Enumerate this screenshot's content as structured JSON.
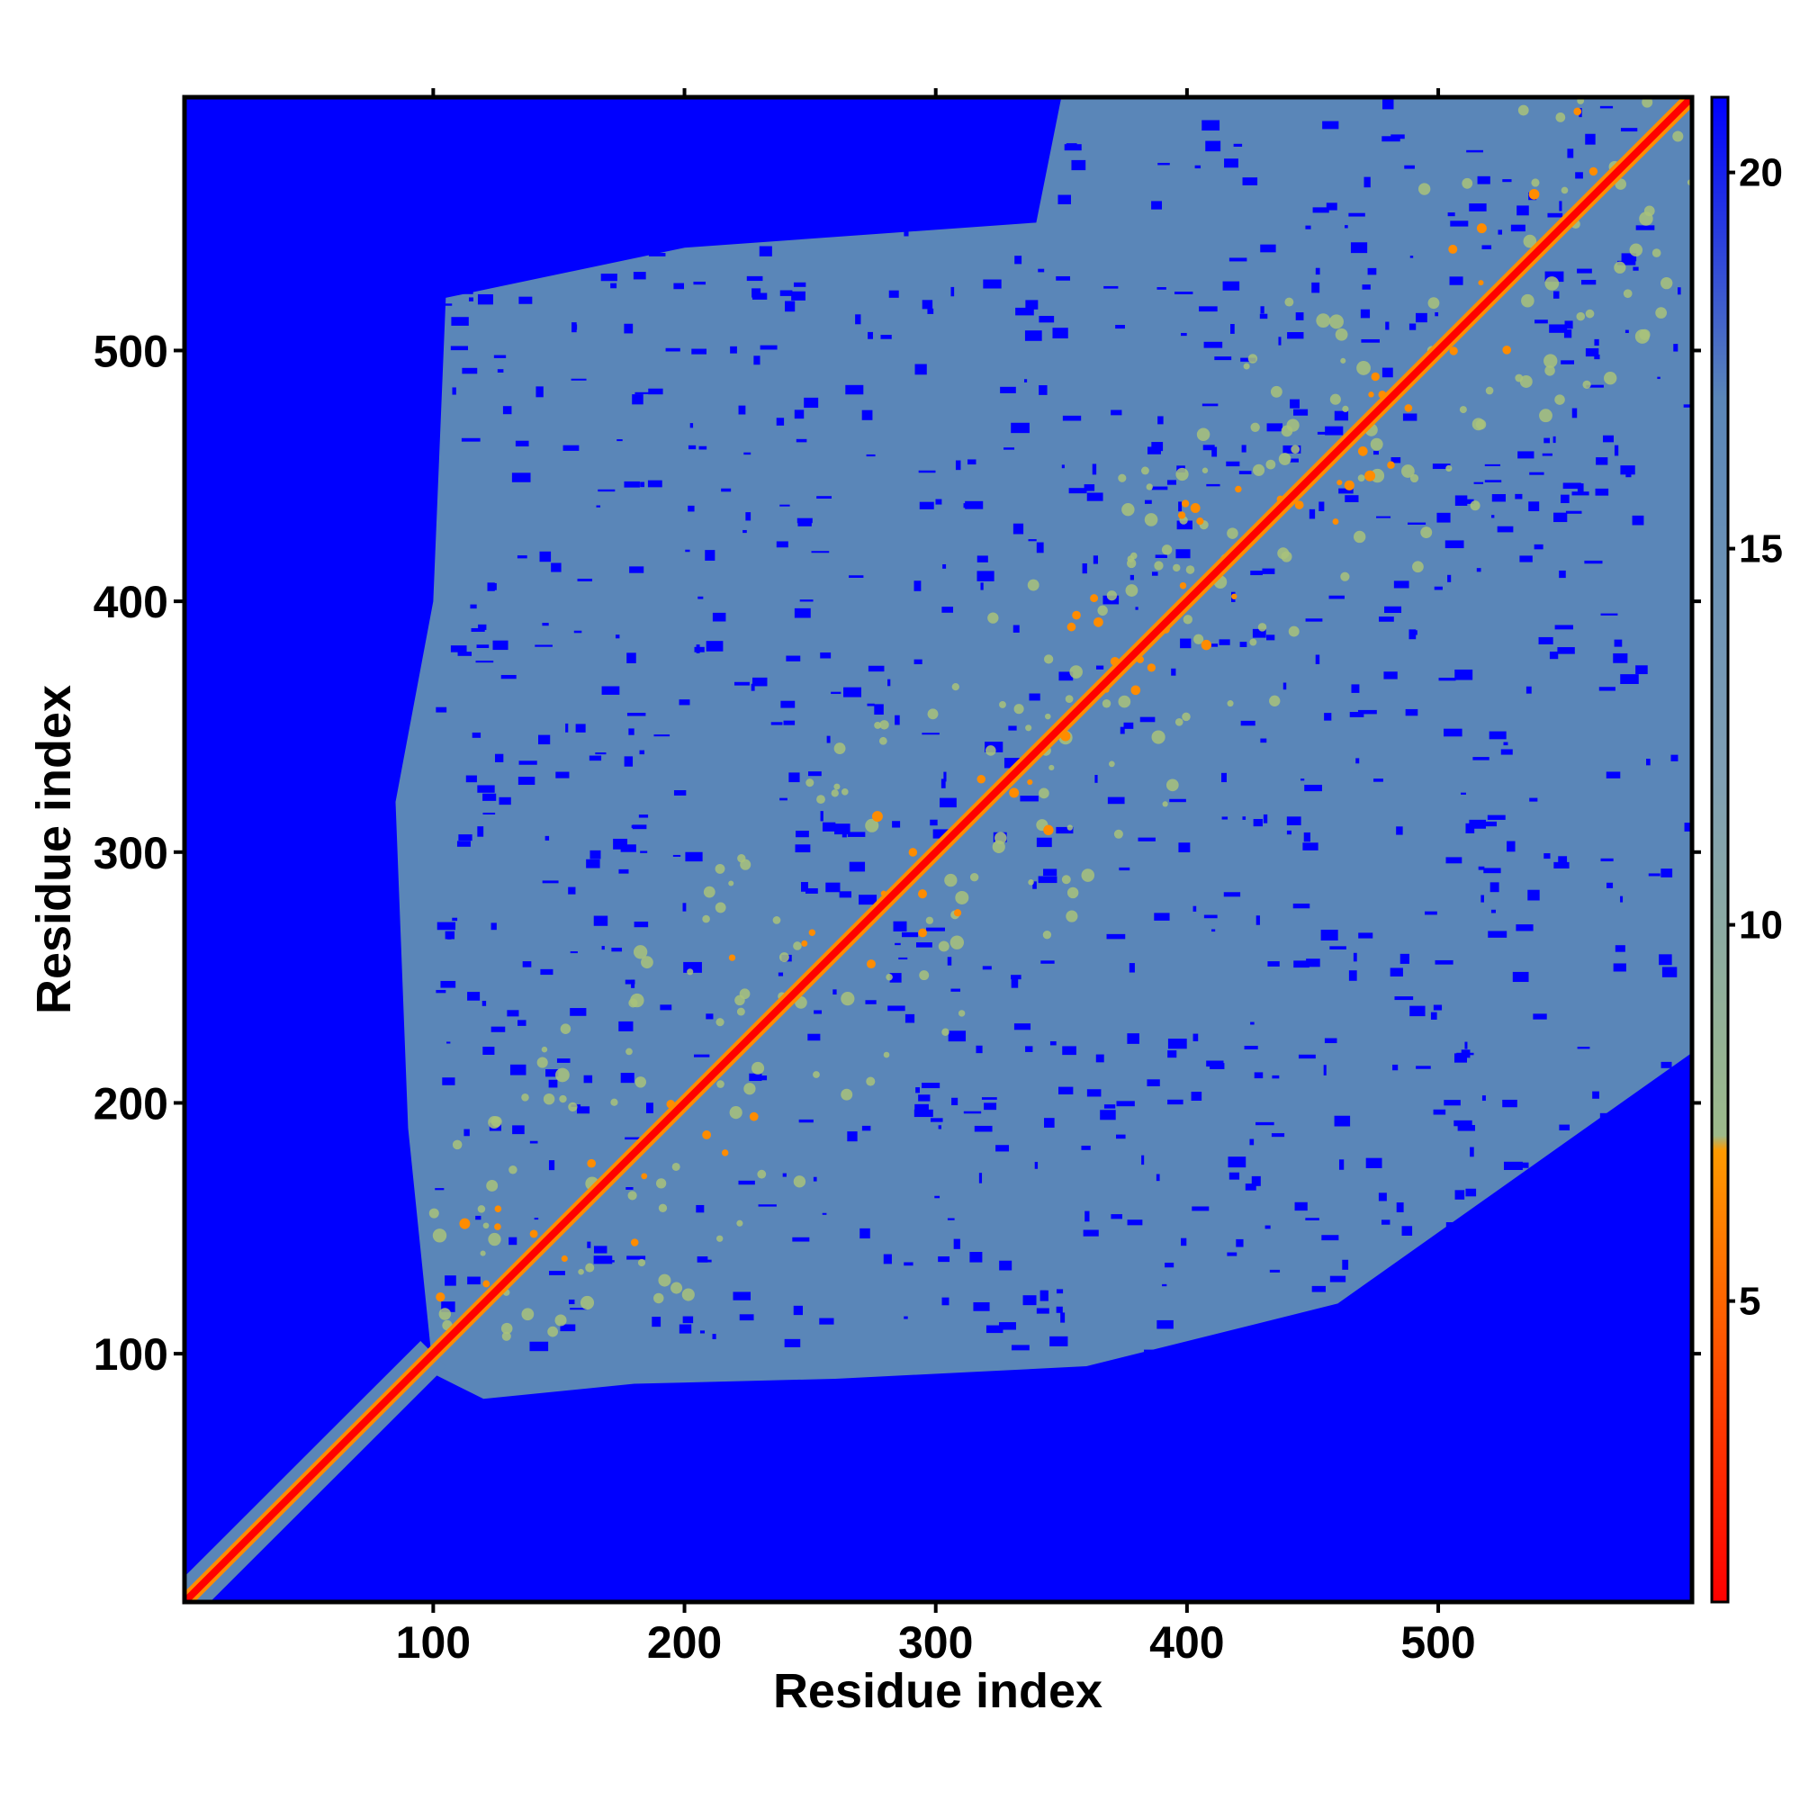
{
  "chart_data": {
    "type": "heatmap",
    "title": "",
    "xlabel": "Residue index",
    "ylabel": "Residue index",
    "xlim": [
      1,
      601
    ],
    "ylim": [
      1,
      601
    ],
    "x_ticks": [
      100,
      200,
      300,
      400,
      500
    ],
    "y_ticks": [
      100,
      200,
      300,
      400,
      500
    ],
    "n_residues": 601,
    "grid": false,
    "legend": "none",
    "colorbar": {
      "position": "right",
      "range": [
        1,
        21
      ],
      "ticks": [
        5,
        10,
        15,
        20
      ],
      "colors": {
        "low": "#ff0000",
        "mid_low": "#ff8c00",
        "mid": "#a9c27a",
        "mid_high": "#5a86b8",
        "high": "#0000ff"
      }
    },
    "description_values": {
      "diagonal_distance": 1,
      "background_distance": 21,
      "contact_region_start": 100
    }
  }
}
